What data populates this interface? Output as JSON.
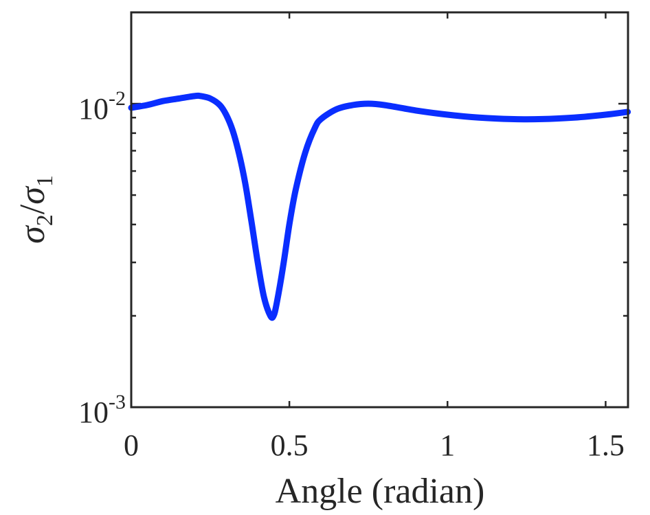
{
  "chart_data": {
    "type": "line",
    "xlabel": "Angle (radian)",
    "ylabel_symbol": "σ",
    "ylabel_sub1": "2",
    "ylabel_slash": "/",
    "ylabel_sub2": "1",
    "xlim": [
      0,
      1.5708
    ],
    "ylim": [
      0.001,
      0.02
    ],
    "yscale": "log",
    "grid": false,
    "x_ticks": [
      {
        "value": 0,
        "label": "0"
      },
      {
        "value": 0.5,
        "label": "0.5"
      },
      {
        "value": 1,
        "label": "1"
      },
      {
        "value": 1.5,
        "label": "1.5"
      }
    ],
    "y_ticks": [
      {
        "value": 0.001,
        "base": "10",
        "exp": "-3"
      },
      {
        "value": 0.01,
        "base": "10",
        "exp": "-2"
      }
    ],
    "series": [
      {
        "color": "#0a2eff",
        "x": [
          0,
          0.05,
          0.1,
          0.15,
          0.2,
          0.22,
          0.25,
          0.28,
          0.3,
          0.32,
          0.34,
          0.36,
          0.38,
          0.4,
          0.42,
          0.44,
          0.45,
          0.46,
          0.48,
          0.5,
          0.52,
          0.55,
          0.58,
          0.6,
          0.65,
          0.7,
          0.75,
          0.8,
          0.9,
          1.0,
          1.1,
          1.2,
          1.3,
          1.4,
          1.5,
          1.57
        ],
        "y": [
          0.0097,
          0.0099,
          0.0102,
          0.0104,
          0.0106,
          0.0106,
          0.0104,
          0.0099,
          0.0092,
          0.0082,
          0.0069,
          0.0055,
          0.0041,
          0.003,
          0.0023,
          0.002,
          0.002,
          0.0022,
          0.0029,
          0.004,
          0.0052,
          0.0069,
          0.0083,
          0.0089,
          0.0096,
          0.0099,
          0.01,
          0.0099,
          0.0095,
          0.0092,
          0.009,
          0.0089,
          0.0089,
          0.009,
          0.0092,
          0.0094
        ]
      }
    ]
  }
}
